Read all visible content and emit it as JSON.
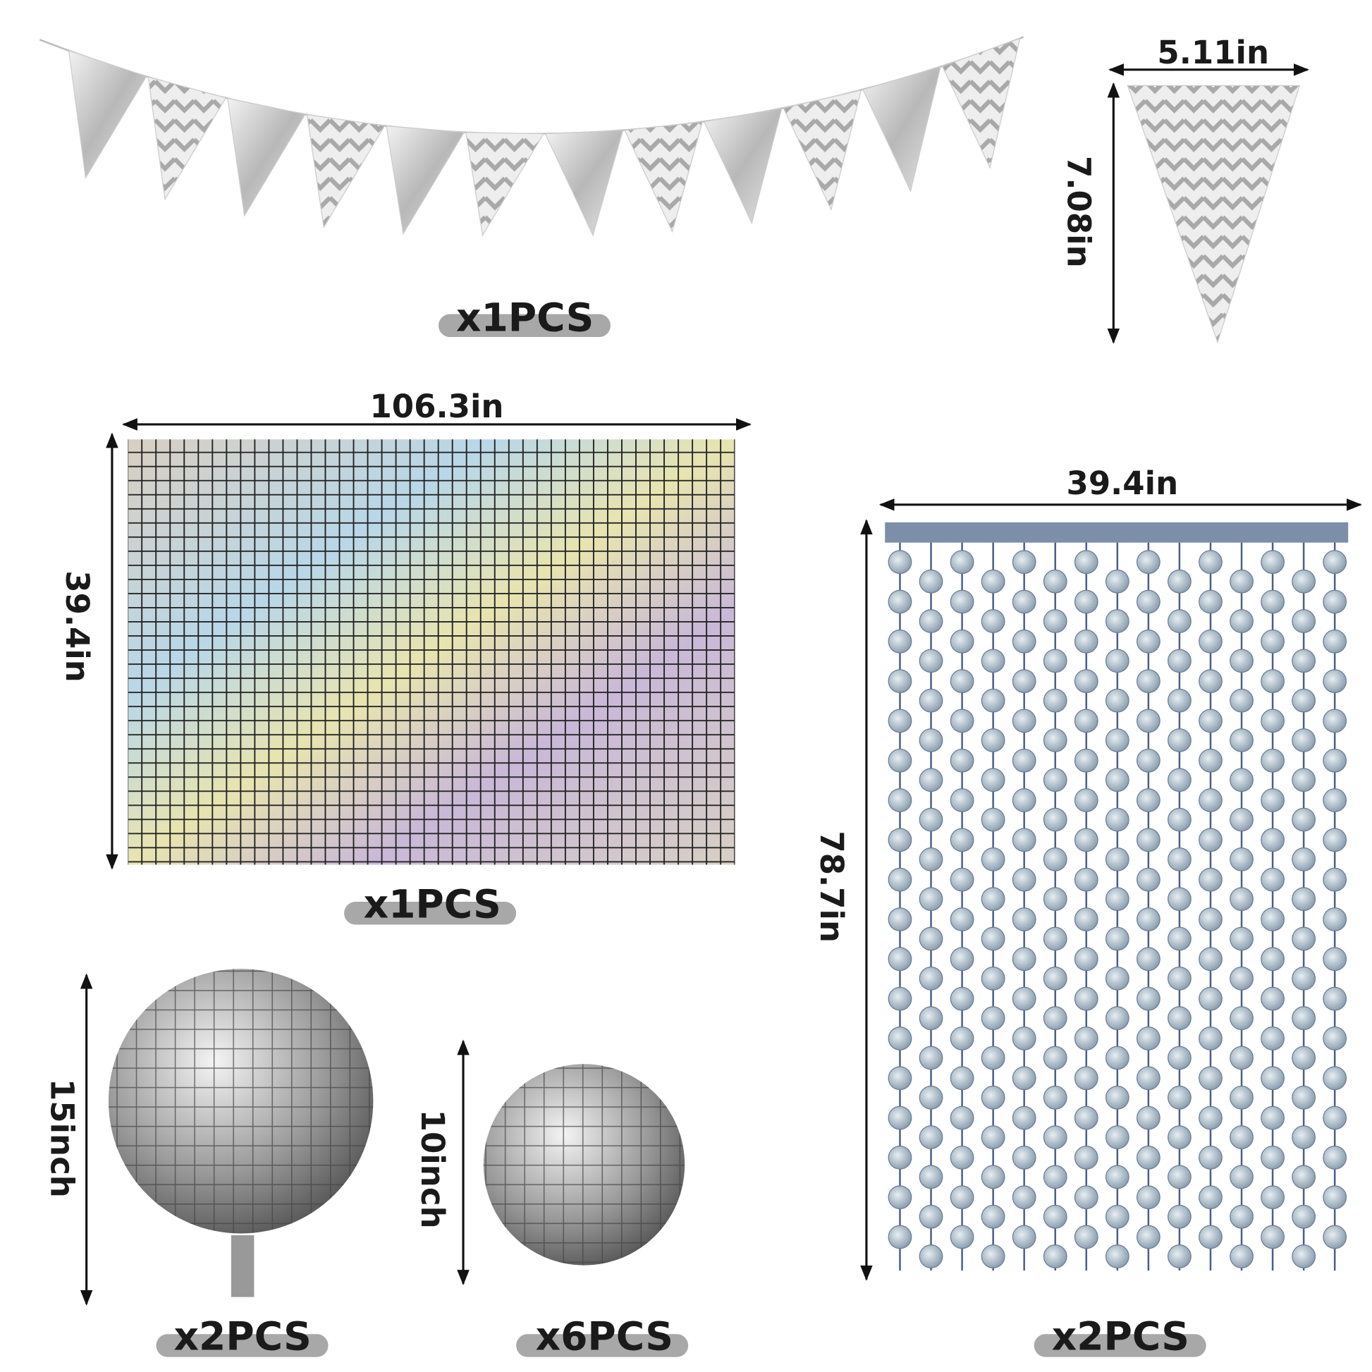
{
  "banner": {
    "quantity": "x1PCS"
  },
  "pennant": {
    "width": "5.11in",
    "height": "7.08in"
  },
  "backdrop": {
    "width": "106.3in",
    "height": "39.4in",
    "quantity": "x1PCS"
  },
  "curtain": {
    "width": "39.4in",
    "height": "78.7in",
    "quantity": "x2PCS"
  },
  "balloon_large": {
    "height": "15inch",
    "quantity": "x2PCS"
  },
  "balloon_small": {
    "height": "10inch",
    "quantity": "x6PCS"
  }
}
